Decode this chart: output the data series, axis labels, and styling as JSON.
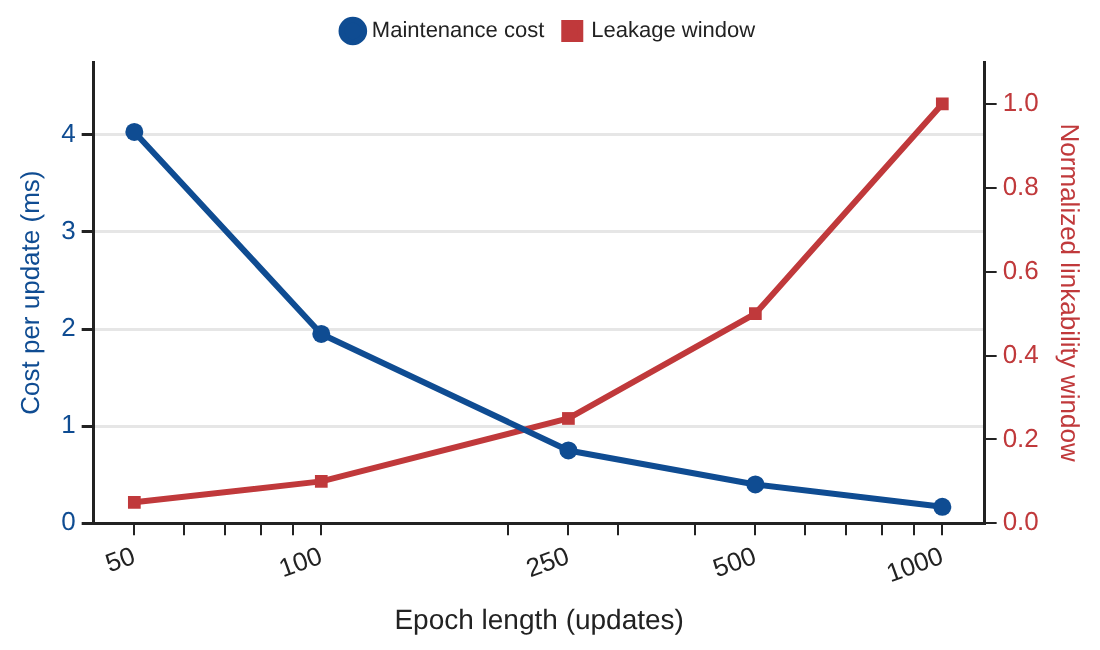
{
  "chart_data": {
    "type": "line",
    "xlabel": "Epoch length (updates)",
    "ylabel": "Cost per update (ms)",
    "y2label": "Normalized linkability window",
    "log": "x",
    "grid": "y",
    "legend": "top",
    "line_style": "solid",
    "x": [
      50,
      100,
      250,
      500,
      1000
    ],
    "xlim": [
      43,
      1170
    ],
    "xticks": [
      50,
      {
        "value": 60,
        "label": null
      },
      {
        "value": 70,
        "label": null
      },
      {
        "value": 80,
        "label": null
      },
      {
        "value": 90,
        "label": null
      },
      100,
      {
        "value": 200,
        "label": null
      },
      250,
      {
        "value": 300,
        "label": null
      },
      {
        "value": 400,
        "label": null
      },
      500,
      {
        "value": 600,
        "label": null
      },
      {
        "value": 700,
        "label": null
      },
      {
        "value": 800,
        "label": null
      },
      {
        "value": 900,
        "label": null
      },
      1000
    ],
    "ylim": [
      0,
      4.75
    ],
    "yticks": [
      0,
      1,
      2,
      3,
      4
    ],
    "y2lim": [
      0,
      1.1
    ],
    "y2ticks": [
      {
        "value": 0,
        "label": "0.0"
      },
      {
        "value": 0.2,
        "label": "0.2"
      },
      {
        "value": 0.4,
        "label": "0.4"
      },
      {
        "value": 0.6,
        "label": "0.6"
      },
      {
        "value": 0.8,
        "label": "0.8"
      },
      {
        "value": 1,
        "label": "1.0"
      }
    ],
    "series": [
      {
        "name": "Maintenance cost",
        "color": "#0f4c92",
        "marker": "circle",
        "values": [
          4.03,
          1.95,
          0.75,
          0.4,
          0.17
        ]
      },
      {
        "name": "Leakage window",
        "color": "#c0393b",
        "marker": "square",
        "axis": "y2",
        "values": [
          0.05,
          0.1,
          0.25,
          0.5,
          1.0
        ]
      }
    ]
  }
}
